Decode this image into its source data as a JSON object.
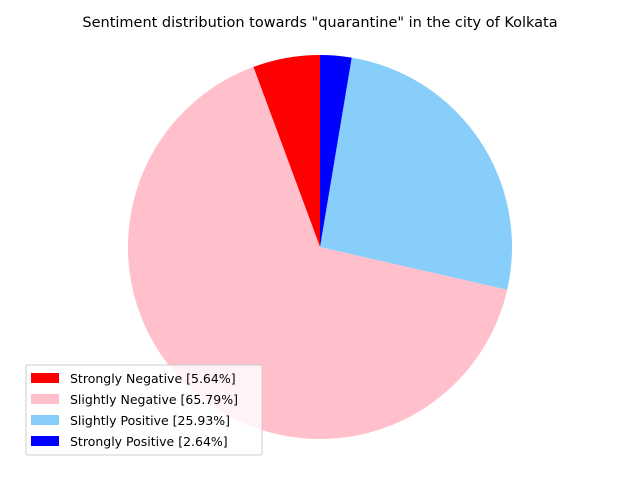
{
  "chart_data": {
    "type": "pie",
    "title": "Sentiment distribution towards \"quarantine\" in the city of Kolkata",
    "slices": [
      {
        "label": "Strongly Negative [5.64%]",
        "value": 5.64,
        "color": "#ff0000"
      },
      {
        "label": "Slightly Negative [65.79%]",
        "value": 65.79,
        "color": "#ffc0cb"
      },
      {
        "label": "Slightly Positive [25.93%]",
        "value": 25.93,
        "color": "#87cefa"
      },
      {
        "label": "Strongly Positive [2.64%]",
        "value": 2.64,
        "color": "#0000ff"
      }
    ],
    "start_angle_deg": 90,
    "direction": "counterclockwise",
    "legend_placement": "lower-left"
  }
}
